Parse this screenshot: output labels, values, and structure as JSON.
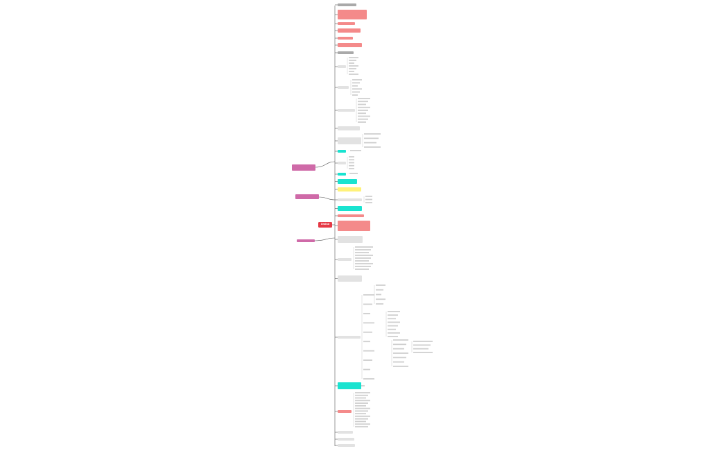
{
  "root_label": "Xmind",
  "branch_labels": {
    "upper": "",
    "middle": "",
    "lower": ""
  },
  "colors": {
    "root": "#e53945",
    "line": "#555555",
    "red_node": "#f48a8a",
    "cyan_node": "#19e3d0",
    "gray_node": "#e2e2e2",
    "yellow_node": "#fff27a",
    "pink_node": "#cf6aa8",
    "blue_node": "#8ec7ff"
  },
  "nodes": [
    {
      "id": "t1",
      "style": "dgray",
      "text": ""
    },
    {
      "id": "t2",
      "style": "red",
      "text": ""
    },
    {
      "id": "t3",
      "style": "red",
      "text": ""
    },
    {
      "id": "t4",
      "style": "red",
      "text": ""
    },
    {
      "id": "t5",
      "style": "red",
      "text": ""
    },
    {
      "id": "t6",
      "style": "red",
      "text": ""
    },
    {
      "id": "t7",
      "style": "dgray",
      "text": ""
    },
    {
      "id": "t8",
      "style": "gray",
      "text": ""
    },
    {
      "id": "t9",
      "style": "gray",
      "text": ""
    },
    {
      "id": "t10",
      "style": "gray",
      "text": ""
    },
    {
      "id": "t11",
      "style": "gray",
      "text": ""
    },
    {
      "id": "t12",
      "style": "gray",
      "text": ""
    },
    {
      "id": "t13",
      "style": "cyan",
      "text": ""
    },
    {
      "id": "t14",
      "style": "gray",
      "text": ""
    },
    {
      "id": "t15",
      "style": "cyan",
      "text": ""
    },
    {
      "id": "t16",
      "style": "cyan",
      "text": ""
    },
    {
      "id": "t17",
      "style": "yellow",
      "text": ""
    },
    {
      "id": "t18",
      "style": "gray",
      "text": ""
    },
    {
      "id": "t19",
      "style": "cyan",
      "text": ""
    },
    {
      "id": "t20",
      "style": "red",
      "text": ""
    },
    {
      "id": "t21",
      "style": "red",
      "text": ""
    },
    {
      "id": "t22",
      "style": "gray",
      "text": ""
    },
    {
      "id": "t23",
      "style": "gray",
      "text": ""
    },
    {
      "id": "t24",
      "style": "gray",
      "text": ""
    },
    {
      "id": "t25",
      "style": "gray",
      "text": ""
    },
    {
      "id": "t26",
      "style": "cyan",
      "text": ""
    },
    {
      "id": "t27",
      "style": "red",
      "text": ""
    },
    {
      "id": "t28",
      "style": "gray",
      "text": ""
    },
    {
      "id": "t29",
      "style": "gray",
      "text": ""
    },
    {
      "id": "t30",
      "style": "gray",
      "text": ""
    }
  ]
}
